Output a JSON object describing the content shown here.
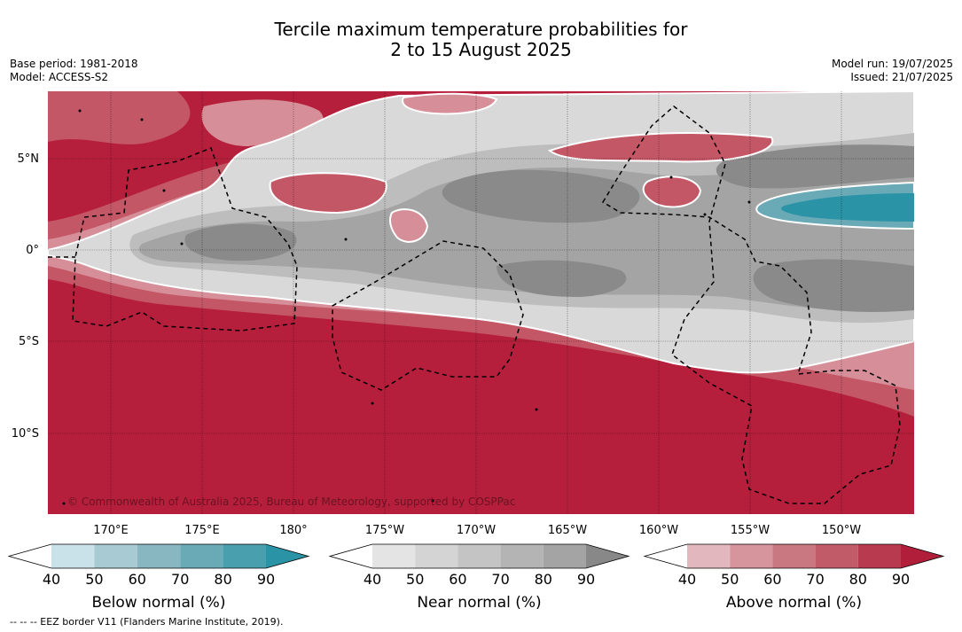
{
  "title_line1": "Tercile maximum temperature probabilities for",
  "title_line2": "2 to 15 August 2025",
  "meta_left": [
    "Base period: 1981-2018",
    "Model: ACCESS-S2"
  ],
  "meta_right": [
    "Model run: 19/07/2025",
    "Issued: 21/07/2025"
  ],
  "lat_labels": [
    "5°N",
    "0°",
    "5°S",
    "10°S"
  ],
  "lon_labels": [
    "170°E",
    "175°E",
    "180°",
    "175°W",
    "170°W",
    "165°W",
    "160°W",
    "155°W",
    "150°W"
  ],
  "copyright": "© Commonwealth of Australia 2025, Bureau of Meteorology, supported by COSPPac",
  "colorbars": [
    {
      "title": "Below normal (%)",
      "ticks": [
        "40",
        "50",
        "60",
        "70",
        "80",
        "90"
      ],
      "colors": [
        "#ffffff",
        "#c9e1e8",
        "#a8cad2",
        "#88b7c2",
        "#6aaab7",
        "#4a9fae",
        "#2a93a5"
      ]
    },
    {
      "title": "Near normal (%)",
      "ticks": [
        "40",
        "50",
        "60",
        "70",
        "80",
        "90"
      ],
      "colors": [
        "#ffffff",
        "#e4e4e4",
        "#d4d4d4",
        "#c4c4c4",
        "#b4b4b4",
        "#a4a4a4",
        "#888888"
      ]
    },
    {
      "title": "Above normal (%)",
      "ticks": [
        "40",
        "50",
        "60",
        "70",
        "80",
        "90"
      ],
      "colors": [
        "#ffffff",
        "#e2b7bd",
        "#d6949d",
        "#c97780",
        "#c15b68",
        "#b83a4e",
        "#b01e3a"
      ]
    }
  ],
  "footer": "-- -- -- EEZ border V11 (Flanders Marine Institute, 2019).",
  "colors": {
    "above_dark": "#b51f3b",
    "above_mid": "#c45766",
    "above_light": "#d68e98",
    "near_light": "#d9d9d9",
    "near_dark": "#8a8a8a",
    "below": "#2a93a5"
  }
}
